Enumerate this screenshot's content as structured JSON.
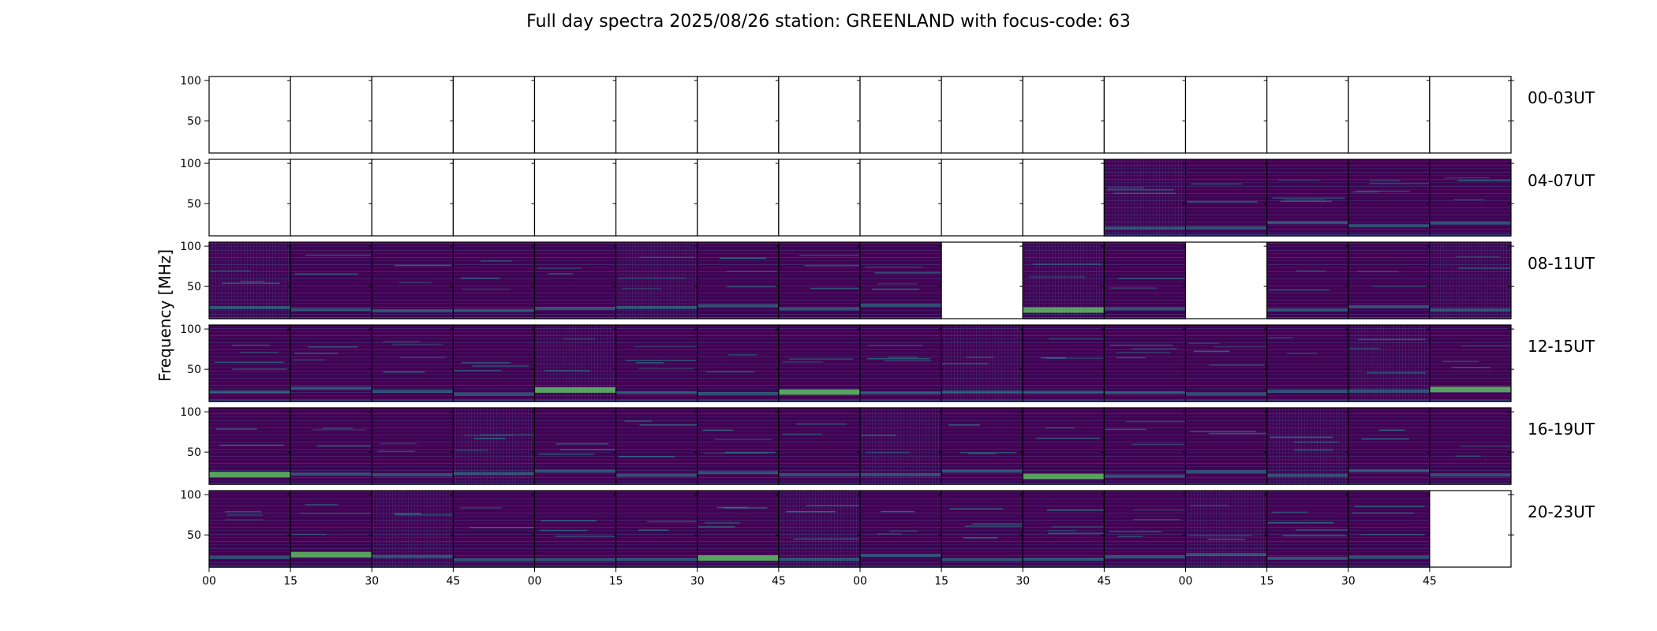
{
  "chart_data": {
    "type": "heatmap",
    "title": "Full day spectra 2025/08/26 station: GREENLAND with focus-code: 63",
    "ylabel": "Frequency [MHz]",
    "ylim": [
      10,
      105
    ],
    "y_ticks": [
      "100",
      "50"
    ],
    "x_ticks": [
      "00",
      "15",
      "30",
      "45",
      "00",
      "15",
      "30",
      "45",
      "00",
      "15",
      "30",
      "45",
      "00",
      "15",
      "30",
      "45"
    ],
    "rows": [
      {
        "label": "00-03UT",
        "panels": [
          0,
          0,
          0,
          0,
          0,
          0,
          0,
          0,
          0,
          0,
          0,
          0,
          0,
          0,
          0,
          0
        ]
      },
      {
        "label": "04-07UT",
        "panels": [
          0,
          0,
          0,
          0,
          0,
          0,
          0,
          0,
          0,
          0,
          0,
          1,
          1,
          1,
          1,
          1
        ]
      },
      {
        "label": "08-11UT",
        "panels": [
          1,
          1,
          1,
          1,
          1,
          1,
          1,
          1,
          1,
          0,
          1,
          1,
          0,
          1,
          1,
          1
        ]
      },
      {
        "label": "12-15UT",
        "panels": [
          1,
          1,
          1,
          1,
          1,
          1,
          1,
          1,
          1,
          1,
          1,
          1,
          1,
          1,
          1,
          1
        ]
      },
      {
        "label": "16-19UT",
        "panels": [
          1,
          1,
          1,
          1,
          1,
          1,
          1,
          1,
          1,
          1,
          1,
          1,
          1,
          1,
          1,
          1
        ]
      },
      {
        "label": "20-23UT",
        "panels": [
          1,
          1,
          1,
          1,
          1,
          1,
          1,
          1,
          1,
          1,
          1,
          1,
          1,
          1,
          1,
          0
        ]
      }
    ],
    "colors": {
      "background": "#440154",
      "band": "#3b528b",
      "line": "#21918c",
      "bright": "#5ec962",
      "peak": "#fde725"
    }
  }
}
